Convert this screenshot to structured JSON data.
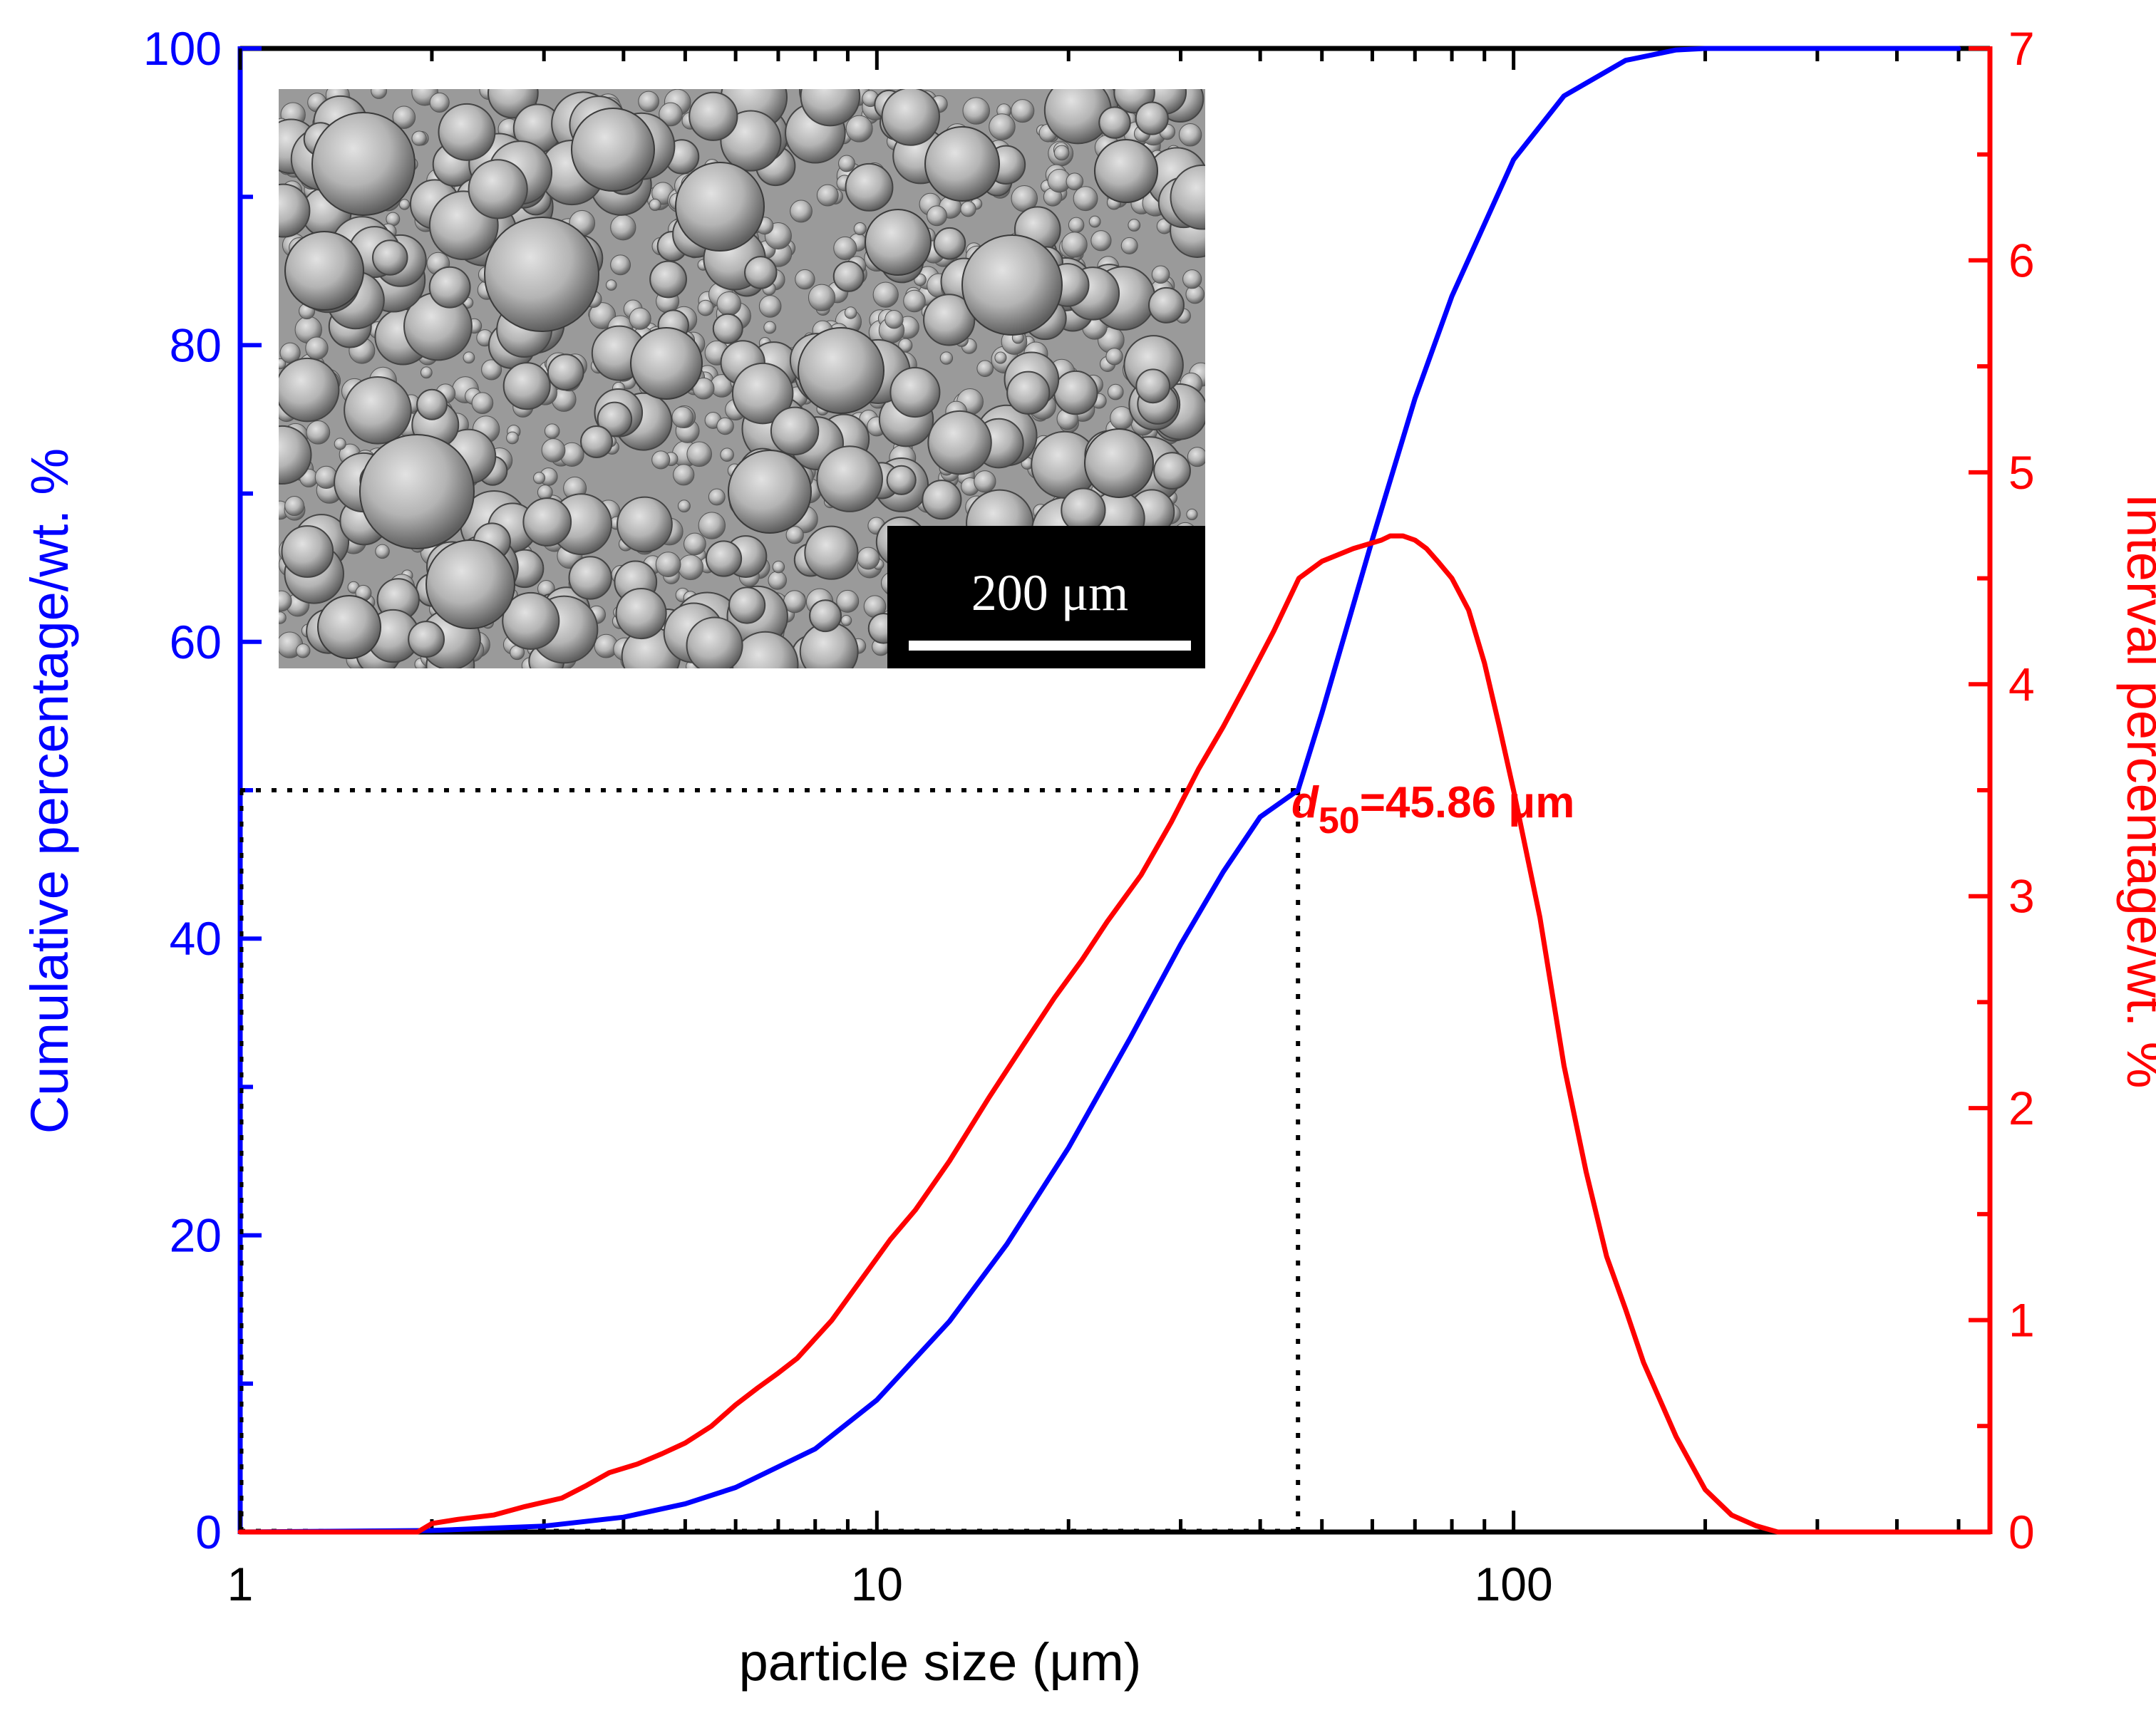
{
  "colors": {
    "cumulative": "#0000ff",
    "interval": "#ff0000",
    "axis_top_bottom": "#000000",
    "guide": "#000000"
  },
  "chart_data": {
    "type": "line",
    "title": "",
    "xlabel": "particle size (μm)",
    "ylabel_left": "Cumulative percentage/wt. %",
    "ylabel_right": "Interval percentage/wt. %",
    "x_scale": "log",
    "xlim": [
      1,
      560
    ],
    "ylim_left": [
      0,
      100
    ],
    "ylim_right": [
      0,
      7
    ],
    "x_ticks": [
      1,
      10,
      100
    ],
    "x_tick_labels": [
      "1",
      "10",
      "100"
    ],
    "y_left_ticks": [
      0,
      20,
      40,
      60,
      80,
      100
    ],
    "y_left_tick_labels": [
      "0",
      "20",
      "40",
      "60",
      "80",
      "100"
    ],
    "y_right_ticks": [
      0,
      1,
      2,
      3,
      4,
      5,
      6,
      7
    ],
    "y_right_tick_labels": [
      "0",
      "1",
      "2",
      "3",
      "4",
      "5",
      "6",
      "7"
    ],
    "series": [
      {
        "name": "Cumulative percentage",
        "axis": "left",
        "color": "#0000ff",
        "x": [
          1,
          2,
          3,
          4,
          5,
          6,
          8,
          10,
          13,
          16,
          20,
          25,
          30,
          35,
          40,
          45.86,
          50,
          60,
          70,
          80,
          100,
          120,
          150,
          180,
          200,
          230,
          300,
          400,
          500
        ],
        "y": [
          0,
          0.1,
          0.4,
          1.0,
          1.9,
          3.0,
          5.6,
          8.9,
          14.2,
          19.4,
          25.9,
          33.3,
          39.6,
          44.5,
          48.2,
          50,
          55.2,
          66.9,
          76.4,
          83.3,
          92.5,
          96.8,
          99.2,
          99.9,
          100,
          100,
          100,
          100,
          100
        ]
      },
      {
        "name": "Interval percentage",
        "axis": "right",
        "color": "#ff0000",
        "x": [
          1,
          1.9,
          2.0,
          2.2,
          2.5,
          2.8,
          3.2,
          3.5,
          3.8,
          4.2,
          4.6,
          5.0,
          5.5,
          6.0,
          6.5,
          7.0,
          7.5,
          8.5,
          9.5,
          10.5,
          11.5,
          13,
          15,
          17,
          19,
          21,
          23,
          26,
          29,
          32,
          35,
          38,
          42,
          46,
          50,
          56,
          62,
          64,
          67,
          70,
          73,
          76,
          80,
          85,
          90,
          95,
          100,
          110,
          120,
          130,
          140,
          150,
          160,
          180,
          200,
          220,
          240,
          260,
          300,
          400,
          500,
          560
        ],
        "y": [
          0,
          0,
          0.04,
          0.06,
          0.08,
          0.12,
          0.16,
          0.22,
          0.28,
          0.32,
          0.37,
          0.42,
          0.5,
          0.6,
          0.68,
          0.75,
          0.82,
          1.0,
          1.2,
          1.38,
          1.52,
          1.75,
          2.05,
          2.3,
          2.52,
          2.7,
          2.88,
          3.1,
          3.35,
          3.6,
          3.8,
          4.0,
          4.25,
          4.5,
          4.58,
          4.64,
          4.68,
          4.7,
          4.7,
          4.68,
          4.64,
          4.58,
          4.5,
          4.35,
          4.1,
          3.8,
          3.5,
          2.9,
          2.2,
          1.7,
          1.3,
          1.05,
          0.8,
          0.45,
          0.2,
          0.08,
          0.03,
          0,
          0,
          0,
          0,
          0
        ]
      }
    ],
    "annotations": [
      {
        "label_main": "d",
        "label_sub": "50",
        "label_rest": "=45.86 μm",
        "x": 45.86,
        "y_left": 50,
        "guide_lines": "dotted"
      }
    ],
    "inset": {
      "kind": "SEM micrograph of spherical powder particles",
      "scale_bar_label": "200 μm"
    }
  }
}
